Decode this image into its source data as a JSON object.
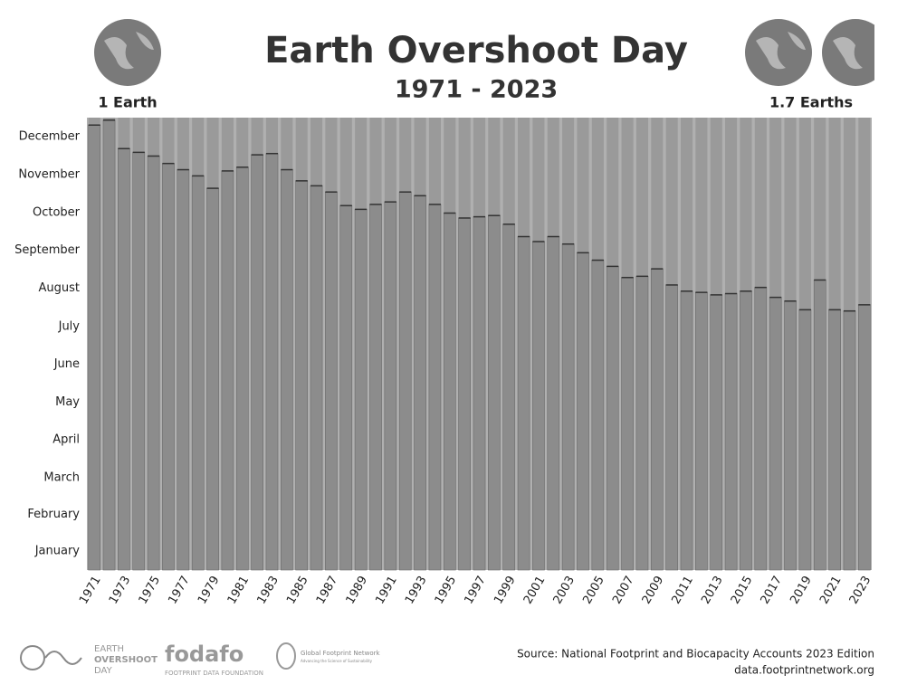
{
  "chart_data": {
    "type": "bar",
    "title": "Earth Overshoot Day",
    "subtitle": "1971 - 2023",
    "annotations": [
      "1 Earth",
      "1.7 Earths"
    ],
    "categories": [
      "1971",
      null,
      "1973",
      null,
      "1975",
      null,
      "1977",
      null,
      "1979",
      null,
      "1981",
      null,
      "1983",
      null,
      "1985",
      null,
      "1987",
      null,
      "1989",
      null,
      "1991",
      null,
      "1993",
      null,
      "1995",
      null,
      "1997",
      null,
      "1999",
      null,
      "2001",
      null,
      "2003",
      null,
      "2005",
      null,
      "2007",
      null,
      "2009",
      null,
      "2011",
      null,
      "2013",
      null,
      "2015",
      null,
      "2017",
      null,
      "2019",
      null,
      "2021",
      null,
      "2023"
    ],
    "values": [
      359,
      363,
      340,
      337,
      334,
      328,
      323,
      318,
      308,
      322,
      325,
      335,
      336,
      323,
      314,
      310,
      305,
      294,
      291,
      295,
      297,
      305,
      302,
      295,
      288,
      284,
      285,
      286,
      279,
      269,
      265,
      269,
      263,
      256,
      250,
      245,
      236,
      237,
      243,
      230,
      225,
      224,
      222,
      223,
      225,
      228,
      220,
      217,
      210,
      234,
      210,
      209,
      214
    ],
    "color": "#8c8c8c",
    "ylim": [
      0,
      365
    ],
    "yticks": [
      {
        "value": 15.5,
        "label": "January"
      },
      {
        "value": 45,
        "label": "February"
      },
      {
        "value": 74.5,
        "label": "March"
      },
      {
        "value": 105,
        "label": "April"
      },
      {
        "value": 135.5,
        "label": "May"
      },
      {
        "value": 166,
        "label": "June"
      },
      {
        "value": 196.5,
        "label": "July"
      },
      {
        "value": 227.5,
        "label": "August"
      },
      {
        "value": 258,
        "label": "September"
      },
      {
        "value": 288.5,
        "label": "October"
      },
      {
        "value": 319,
        "label": "November"
      },
      {
        "value": 349.5,
        "label": "December"
      }
    ],
    "source": [
      "Source: National Footprint and Biocapacity Accounts 2023 Edition",
      "data.footprintnetwork.org"
    ],
    "logos": [
      "EARTH",
      "OVERSHOOT",
      "DAY",
      "fodafo",
      "FOOTPRINT DATA FOUNDATION",
      "Global Footprint Network",
      "Advancing the Science of Sustainability"
    ]
  }
}
